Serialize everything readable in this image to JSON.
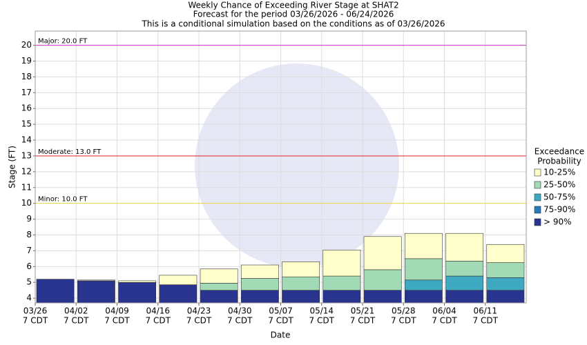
{
  "chart_data": {
    "type": "exceedance-bar",
    "title": [
      "Weekly Chance of Exceeding River Stage at SHAT2",
      "Forecast for the period 03/26/2026 - 06/24/2026",
      "This is a conditional simulation based on the conditions as of 03/26/2026"
    ],
    "x_label": "Date",
    "y_label": "Stage (FT)",
    "categories": [
      "03/26",
      "04/02",
      "04/09",
      "04/16",
      "04/23",
      "04/30",
      "05/07",
      "05/14",
      "05/21",
      "05/28",
      "06/04",
      "06/11"
    ],
    "time_label": "7 CDT",
    "legend_title": [
      "Exceedance",
      "Probability"
    ],
    "series": [
      {
        "name": "> 90%",
        "color": "#29348f",
        "values": [
          5.2,
          5.1,
          5.0,
          4.85,
          4.5,
          4.5,
          4.5,
          4.5,
          4.5,
          4.5,
          4.5,
          4.5
        ]
      },
      {
        "name": "75-90%",
        "color": "#2a7ab8",
        "values": [
          5.2,
          5.1,
          5.0,
          4.85,
          4.5,
          4.5,
          4.5,
          4.5,
          4.5,
          4.5,
          4.5,
          4.5
        ]
      },
      {
        "name": "50-75%",
        "color": "#3fa9c2",
        "values": [
          5.2,
          5.1,
          5.0,
          4.85,
          4.5,
          4.5,
          4.5,
          4.5,
          4.5,
          5.15,
          5.4,
          5.3
        ]
      },
      {
        "name": "25-50%",
        "color": "#a2dab5",
        "values": [
          5.2,
          5.1,
          5.0,
          4.85,
          4.95,
          5.25,
          5.35,
          5.4,
          5.8,
          6.5,
          6.35,
          6.25
        ]
      },
      {
        "name": "10-25%",
        "color": "#ffffcc",
        "values": [
          5.2,
          5.15,
          5.1,
          5.45,
          5.85,
          6.1,
          6.3,
          7.05,
          7.9,
          8.1,
          8.1,
          7.4
        ]
      }
    ],
    "thresholds": [
      {
        "label": "Major: 20.0 FT",
        "value": 20,
        "color": "#cc33cc"
      },
      {
        "label": "Moderate: 13.0 FT",
        "value": 13,
        "color": "#dd2222"
      },
      {
        "label": "Minor: 10.0 FT",
        "value": 10,
        "color": "#e8d84a"
      }
    ],
    "ylim": [
      3.7,
      20.9
    ],
    "yticks": [
      4,
      5,
      6,
      7,
      8,
      9,
      10,
      11,
      12,
      13,
      14,
      15,
      16,
      17,
      18,
      19,
      20
    ],
    "grid": true
  }
}
